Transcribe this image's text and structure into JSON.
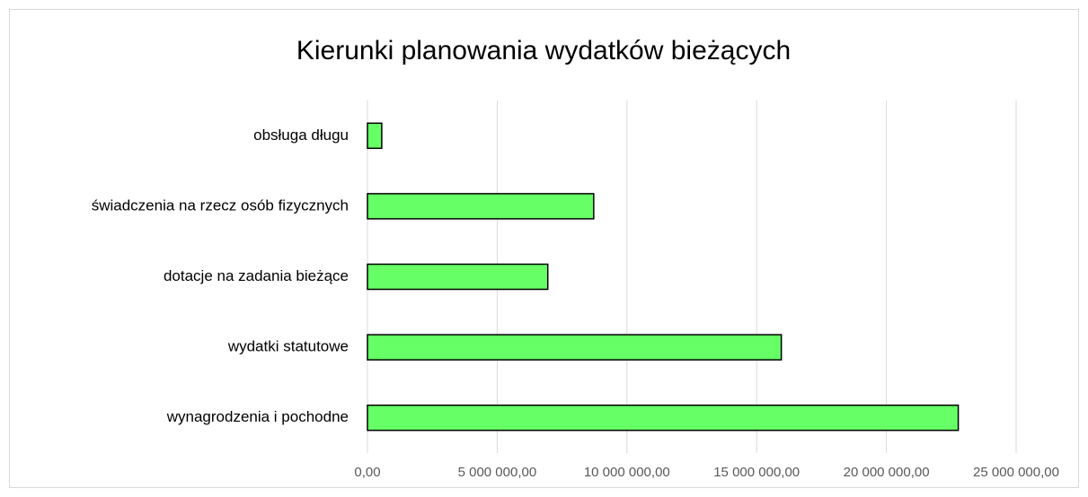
{
  "chart_data": {
    "type": "bar",
    "orientation": "horizontal",
    "title": "Kierunki planowania wydatków bieżących",
    "categories": [
      "obsługa długu",
      "świadczenia na rzecz osób fizycznych",
      "dotacje na zadania bieżące",
      "wydatki statutowe",
      "wynagrodzenia i pochodne"
    ],
    "values": [
      550000,
      8720000,
      6950000,
      15950000,
      22770000
    ],
    "color": "#66ff66",
    "xlim": [
      0,
      25000000
    ],
    "xticks": [
      {
        "value": 0,
        "label": "0,00"
      },
      {
        "value": 5000000,
        "label": "5 000 000,00"
      },
      {
        "value": 10000000,
        "label": "10 000 000,00"
      },
      {
        "value": 15000000,
        "label": "15 000 000,00"
      },
      {
        "value": 20000000,
        "label": "20 000 000,00"
      },
      {
        "value": 25000000,
        "label": "25 000 000,00"
      }
    ],
    "grid": true
  }
}
